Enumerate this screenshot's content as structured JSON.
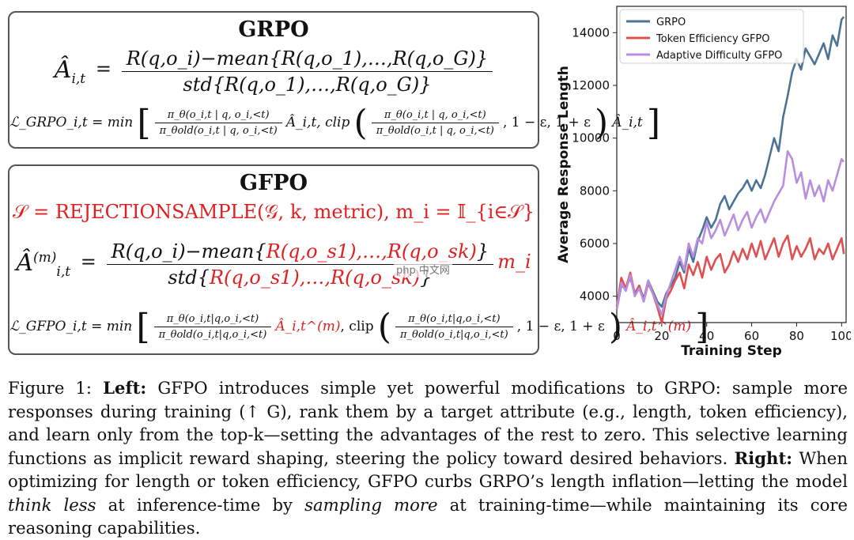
{
  "grpo_panel": {
    "title": "GRPO",
    "adv_lhs": "Â",
    "adv_sub": "i,t",
    "adv_num": "R(q,o_i)−mean{R(q,o_1),…,R(q,o_G)}",
    "adv_den": "std{R(q,o_1),…,R(q,o_G)}",
    "loss_lhs": "ℒ_GRPO_i,t = min",
    "loss_ratio_num": "π_θ(o_i,t | q, o_i,<t)",
    "loss_ratio_den": "π_θold(o_i,t | q, o_i,<t)",
    "loss_adv": "Â_i,t, clip",
    "loss_clip_tail": ", 1 − ε, 1 + ε",
    "loss_adv_end": "Â_i,t"
  },
  "gfpo_panel": {
    "title": "GFPO",
    "selection_eq": "𝒮 = REJECTIONSAMPLE(𝒢, k, metric),  m_i = 𝕀_{i∈𝒮}",
    "adv_lhs": "Â",
    "adv_sup": "(m)",
    "adv_sub": "i,t",
    "adv_num_black": "R(q,o_i)−mean",
    "adv_num_red": "R(q,o_s1),…,R(q,o_sk)",
    "adv_den_black": "std",
    "adv_den_red": "R(q,o_s1),…,R(q,o_sk)",
    "adv_mult": "m_i",
    "loss_lhs": "ℒ_GFPO_i,t = min",
    "loss_ratio_num": "π_θ(o_i,t|q,o_i,<t)",
    "loss_ratio_den": "π_θold(o_i,t|q,o_i,<t)",
    "loss_adv_red": "Â_i,t^(m)",
    "loss_clip": ", clip",
    "loss_clip_tail": ", 1 − ε, 1 + ε",
    "loss_adv_end_red": "Â_i,t^(m)"
  },
  "watermark": "php 中文网",
  "chart_data": {
    "type": "line",
    "xlabel": "Training Step",
    "ylabel": "Average Response Length",
    "xlim": [
      0,
      102
    ],
    "ylim": [
      3000,
      15000
    ],
    "xticks": [
      0,
      20,
      40,
      60,
      80,
      100
    ],
    "yticks": [
      4000,
      6000,
      8000,
      10000,
      12000,
      14000
    ],
    "legend_position": "top-left",
    "series": [
      {
        "name": "GRPO",
        "color": "#4c7396",
        "x": [
          0,
          2,
          4,
          6,
          8,
          10,
          12,
          14,
          16,
          18,
          20,
          22,
          24,
          26,
          28,
          30,
          32,
          34,
          36,
          38,
          40,
          42,
          44,
          46,
          48,
          50,
          52,
          54,
          56,
          58,
          60,
          62,
          64,
          66,
          68,
          70,
          72,
          74,
          76,
          78,
          80,
          82,
          84,
          86,
          88,
          90,
          92,
          94,
          96,
          98,
          100,
          101
        ],
        "y": [
          3500,
          4400,
          4300,
          4700,
          4100,
          4400,
          3900,
          4600,
          4200,
          3800,
          3600,
          4100,
          4400,
          4700,
          5300,
          4900,
          5800,
          5300,
          6100,
          6500,
          7000,
          6600,
          6900,
          7500,
          7800,
          7300,
          7600,
          7900,
          8100,
          8400,
          8000,
          8400,
          8100,
          8600,
          9300,
          10000,
          9500,
          10800,
          11600,
          12500,
          13000,
          12600,
          13400,
          13100,
          12800,
          13200,
          13600,
          13000,
          13900,
          13500,
          14500,
          14600
        ]
      },
      {
        "name": "Token Efficiency GFPO",
        "color": "#e05050",
        "x": [
          0,
          2,
          4,
          6,
          8,
          10,
          12,
          14,
          16,
          18,
          20,
          22,
          24,
          26,
          28,
          30,
          32,
          34,
          36,
          38,
          40,
          42,
          44,
          46,
          48,
          50,
          52,
          54,
          56,
          58,
          60,
          62,
          64,
          66,
          68,
          70,
          72,
          74,
          76,
          78,
          80,
          82,
          84,
          86,
          88,
          90,
          92,
          94,
          96,
          98,
          100,
          101
        ],
        "y": [
          3600,
          4700,
          4300,
          4900,
          4100,
          4400,
          3800,
          4500,
          4100,
          3600,
          3000,
          3900,
          4200,
          4600,
          4900,
          4300,
          5200,
          4800,
          5300,
          4700,
          5500,
          5000,
          5400,
          5600,
          4900,
          5200,
          5700,
          5300,
          5800,
          5400,
          6000,
          5500,
          6100,
          5400,
          5800,
          6200,
          5500,
          6000,
          6300,
          5400,
          5900,
          5500,
          5800,
          6200,
          5400,
          5800,
          5600,
          6000,
          5400,
          5800,
          6200,
          5600
        ]
      },
      {
        "name": "Adaptive Difficulty GFPO",
        "color": "#b88ee0",
        "x": [
          0,
          2,
          4,
          6,
          8,
          10,
          12,
          14,
          16,
          18,
          20,
          22,
          24,
          26,
          28,
          30,
          32,
          34,
          36,
          38,
          40,
          42,
          44,
          46,
          48,
          50,
          52,
          54,
          56,
          58,
          60,
          62,
          64,
          66,
          68,
          70,
          72,
          74,
          76,
          78,
          80,
          82,
          84,
          86,
          88,
          90,
          92,
          94,
          96,
          98,
          100,
          101
        ],
        "y": [
          3500,
          4500,
          4200,
          4800,
          4000,
          4300,
          3800,
          4600,
          4100,
          3700,
          3300,
          4000,
          4500,
          5000,
          5500,
          5000,
          6000,
          5500,
          6200,
          6000,
          6800,
          6200,
          6500,
          6900,
          6300,
          6700,
          7100,
          6500,
          6900,
          7200,
          6600,
          7000,
          7300,
          6800,
          7200,
          7600,
          7900,
          8200,
          9500,
          9200,
          8300,
          8700,
          7700,
          8400,
          7800,
          8200,
          7600,
          8400,
          8000,
          8600,
          9200,
          9100
        ]
      }
    ]
  },
  "caption": {
    "fig_label": "Figure 1:",
    "left_label": "Left:",
    "left_text": "GFPO introduces simple yet powerful modifications to GRPO: sample more responses during training (↑ G), rank them by a target attribute (e.g., length, token efficiency), and learn only from the top-k—setting the advantages of the rest to zero. This selective learning functions as implicit reward shaping, steering the policy toward desired behaviors.",
    "right_label": "Right:",
    "right_text_1": "When optimizing for length or token efficiency, GFPO curbs GRPO’s length inflation—letting the model",
    "right_em_1": "think less",
    "right_text_2": "at inference-time by",
    "right_em_2": "sampling more",
    "right_text_3": "at training-time—while maintaining its core reasoning capabilities."
  }
}
